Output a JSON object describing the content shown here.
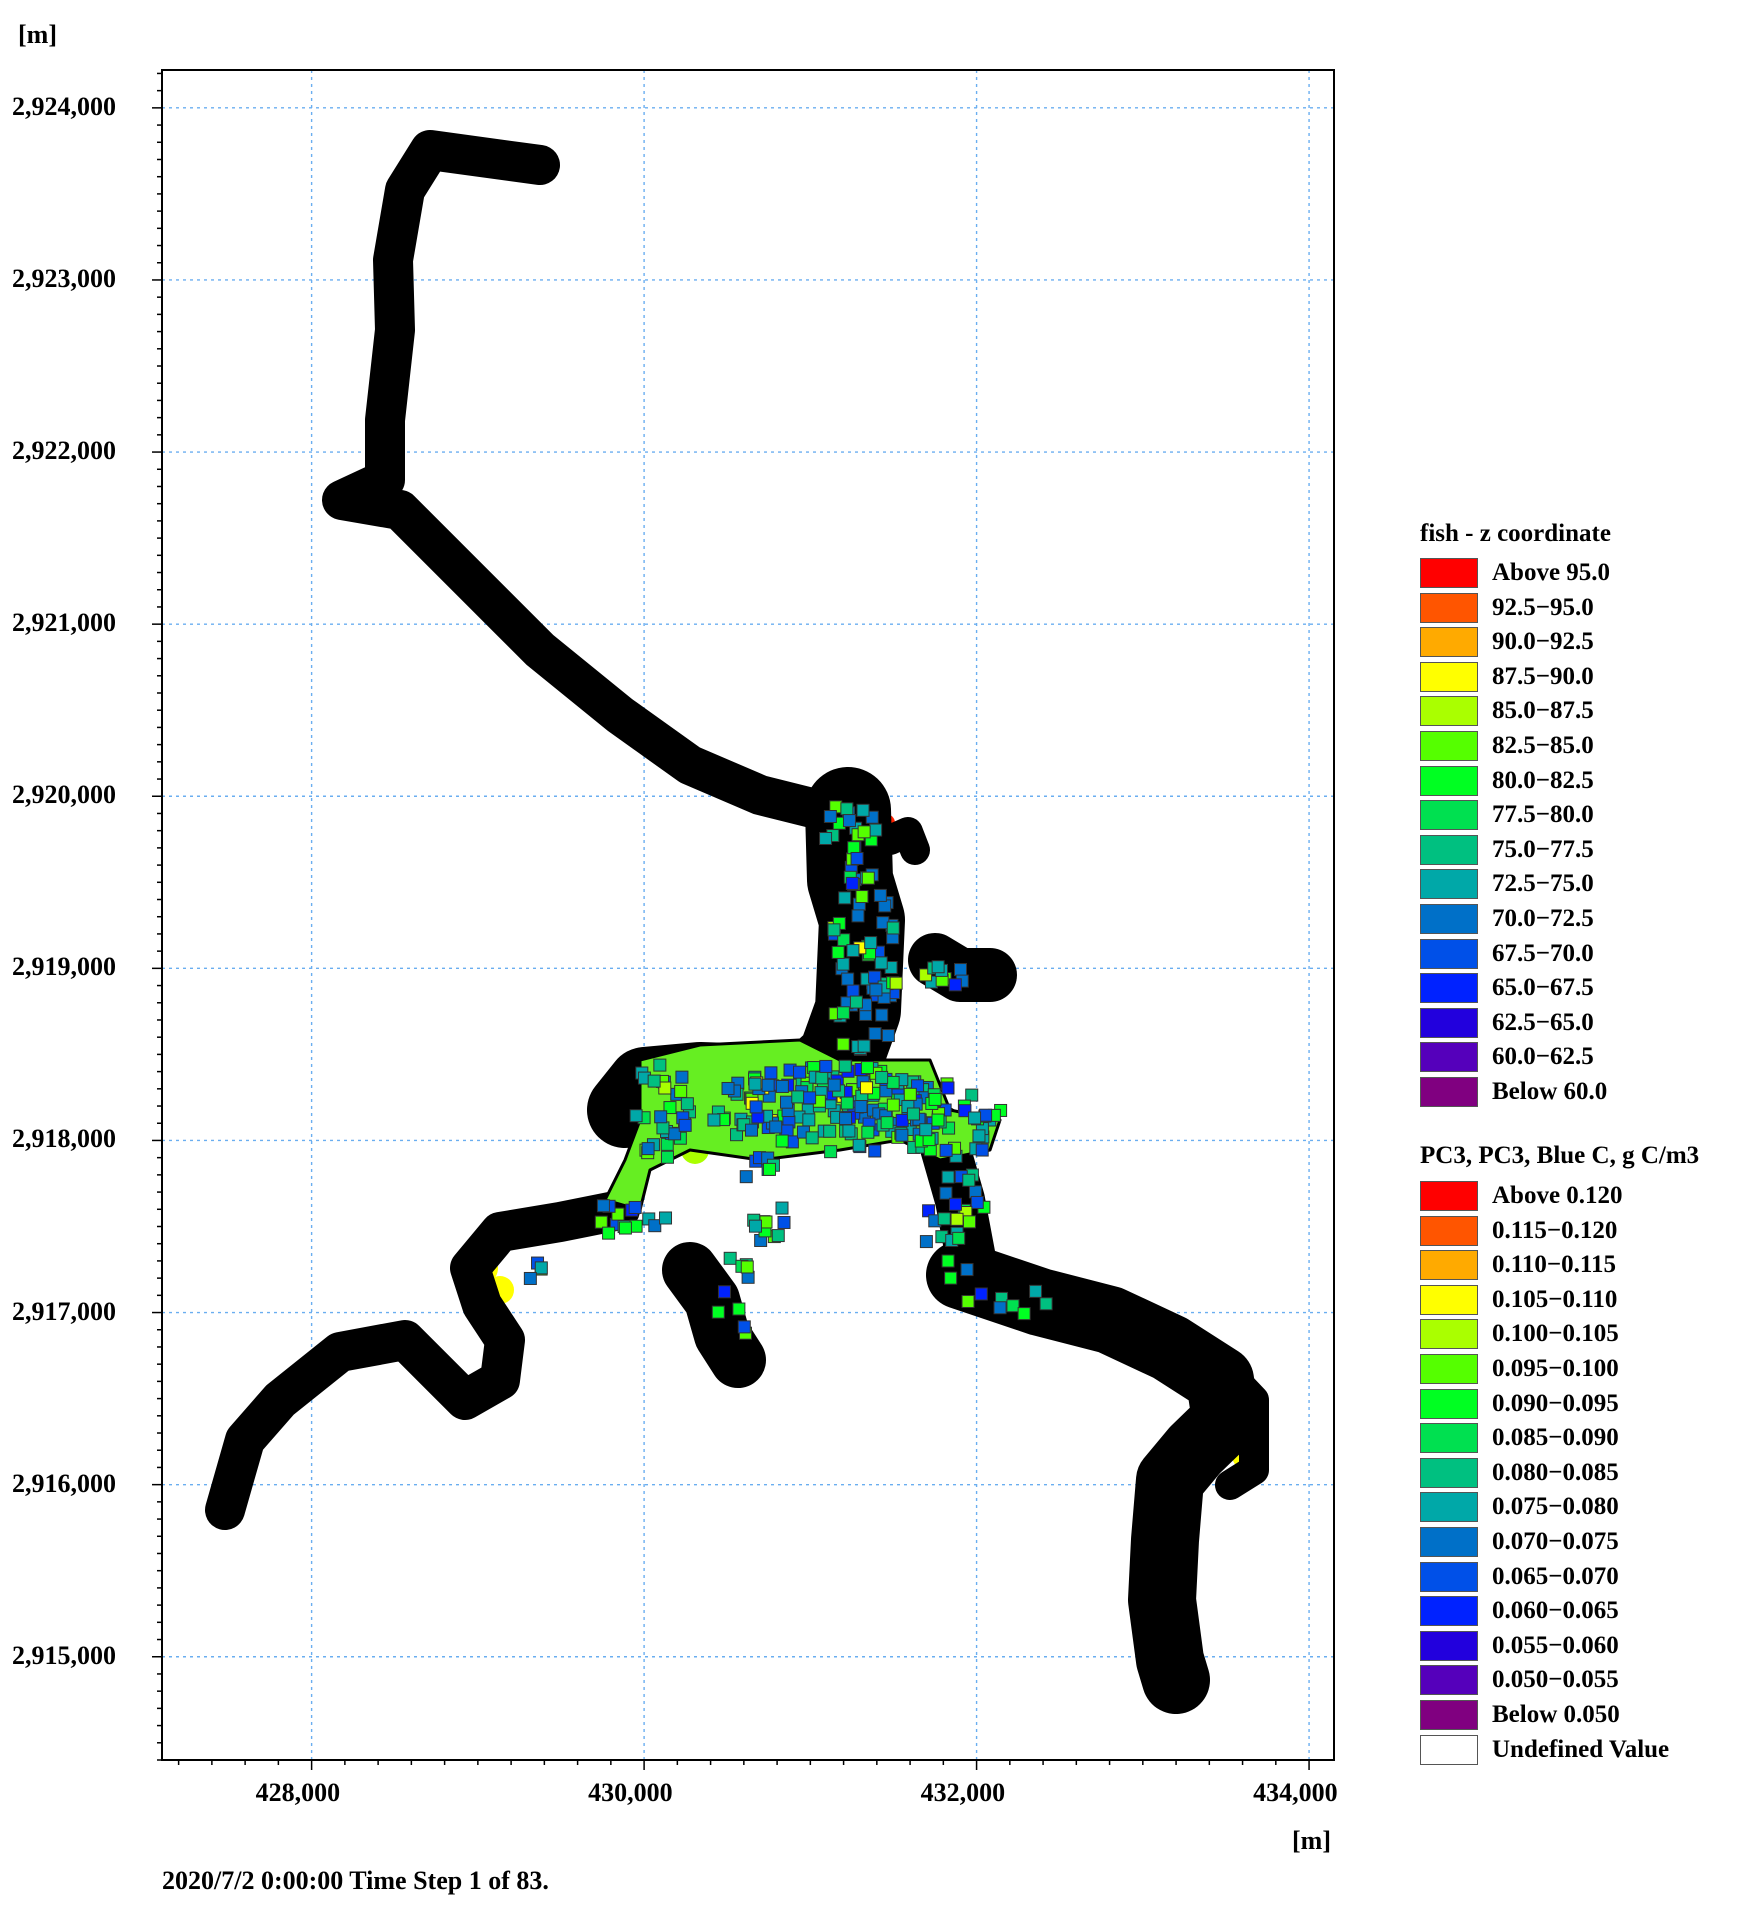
{
  "map": {
    "y_unit": "[m]",
    "x_unit": "[m]",
    "y_ticks": [
      "2,924,000",
      "2,923,000",
      "2,922,000",
      "2,921,000",
      "2,920,000",
      "2,919,000",
      "2,918,000",
      "2,917,000",
      "2,916,000",
      "2,915,000"
    ],
    "x_ticks": [
      "428,000",
      "430,000",
      "432,000",
      "434,000"
    ],
    "x_range": [
      427100,
      434150
    ],
    "y_range": [
      2914400,
      2924220
    ],
    "grid": true,
    "boundary_color": "#000000",
    "water_color": "#66ee22",
    "status": "2020/7/2 0:00:00  Time Step 1 of 83."
  },
  "legend_fish": {
    "title": "fish - z coordinate",
    "items": [
      {
        "label": "Above 95.0",
        "color": "#ff0000"
      },
      {
        "label": "92.5−95.0",
        "color": "#ff5500"
      },
      {
        "label": "90.0−92.5",
        "color": "#ffaa00"
      },
      {
        "label": "87.5−90.0",
        "color": "#ffff00"
      },
      {
        "label": "85.0−87.5",
        "color": "#aaff00"
      },
      {
        "label": "82.5−85.0",
        "color": "#55ff00"
      },
      {
        "label": "80.0−82.5",
        "color": "#00ff22"
      },
      {
        "label": "77.5−80.0",
        "color": "#00e050"
      },
      {
        "label": "75.0−77.5",
        "color": "#00c080"
      },
      {
        "label": "72.5−75.0",
        "color": "#00a8a8"
      },
      {
        "label": "70.0−72.5",
        "color": "#0070c8"
      },
      {
        "label": "67.5−70.0",
        "color": "#0050e8"
      },
      {
        "label": "65.0−67.5",
        "color": "#0022ff"
      },
      {
        "label": "62.5−65.0",
        "color": "#2200dd"
      },
      {
        "label": "60.0−62.5",
        "color": "#5500bb"
      },
      {
        "label": "Below 60.0",
        "color": "#800080"
      }
    ]
  },
  "legend_pc3": {
    "title": "PC3, PC3, Blue C, g C/m3",
    "items": [
      {
        "label": "Above 0.120",
        "color": "#ff0000"
      },
      {
        "label": "0.115−0.120",
        "color": "#ff5500"
      },
      {
        "label": "0.110−0.115",
        "color": "#ffaa00"
      },
      {
        "label": "0.105−0.110",
        "color": "#ffff00"
      },
      {
        "label": "0.100−0.105",
        "color": "#aaff00"
      },
      {
        "label": "0.095−0.100",
        "color": "#55ff00"
      },
      {
        "label": "0.090−0.095",
        "color": "#00ff22"
      },
      {
        "label": "0.085−0.090",
        "color": "#00e050"
      },
      {
        "label": "0.080−0.085",
        "color": "#00c080"
      },
      {
        "label": "0.075−0.080",
        "color": "#00a8a8"
      },
      {
        "label": "0.070−0.075",
        "color": "#0070c8"
      },
      {
        "label": "0.065−0.070",
        "color": "#0050e8"
      },
      {
        "label": "0.060−0.065",
        "color": "#0022ff"
      },
      {
        "label": "0.055−0.060",
        "color": "#2200dd"
      },
      {
        "label": "0.050−0.055",
        "color": "#5500bb"
      },
      {
        "label": "Below  0.050",
        "color": "#800080"
      },
      {
        "label": "Undefined Value",
        "color": "#ffffff"
      }
    ]
  }
}
